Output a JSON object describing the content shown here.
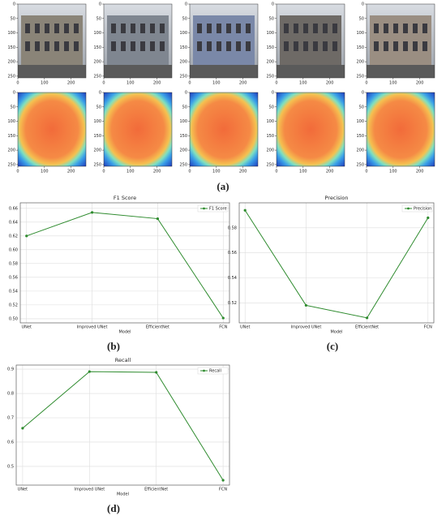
{
  "image_grid": {
    "label": "(a)",
    "xlim": [
      0,
      256
    ],
    "ylim": [
      0,
      256
    ],
    "xticks": [
      0,
      100,
      200
    ],
    "yticks": [
      0,
      50,
      100,
      150,
      200,
      250
    ]
  },
  "chart_data": [
    {
      "type": "line",
      "title": "F1 Score",
      "panel_label": "(b)",
      "xlabel": "Model",
      "categories": [
        "UNet",
        "Improved UNet",
        "EfficientNet",
        "FCN"
      ],
      "series": [
        {
          "name": "F1 Score",
          "color": "#2e8b2e",
          "values": [
            0.62,
            0.654,
            0.645,
            0.501
          ]
        }
      ],
      "ylim": [
        0.494,
        0.668
      ],
      "yticks": [
        {
          "value": 0.5,
          "label": "0.50"
        },
        0.52,
        0.54,
        0.56,
        0.58,
        {
          "value": 0.6,
          "label": "0.60"
        },
        0.62,
        0.64,
        0.66
      ],
      "grid": true,
      "legend": "upper right"
    },
    {
      "type": "line",
      "title": "Precision",
      "panel_label": "(c)",
      "xlabel": "Model",
      "categories": [
        "UNet",
        "Improved UNet",
        "EfficientNet",
        "FCN"
      ],
      "series": [
        {
          "name": "Precision",
          "color": "#2e8b2e",
          "values": [
            0.594,
            0.518,
            0.508,
            0.588
          ]
        }
      ],
      "ylim": [
        0.504,
        0.6
      ],
      "yticks": [
        0.52,
        0.54,
        0.56,
        0.58
      ],
      "grid": true,
      "legend": "upper right"
    },
    {
      "type": "line",
      "title": "Recall",
      "panel_label": "(d)",
      "xlabel": "Model",
      "categories": [
        "UNet",
        "Improved UNet",
        "EfficientNet",
        "FCN"
      ],
      "series": [
        {
          "name": "Recall",
          "color": "#2e8b2e",
          "values": [
            0.657,
            0.89,
            0.887,
            0.443
          ]
        }
      ],
      "ylim": [
        0.423,
        0.917
      ],
      "yticks": [
        0.5,
        0.6,
        0.7,
        0.8,
        0.9
      ],
      "grid": true,
      "legend": "upper right"
    }
  ]
}
